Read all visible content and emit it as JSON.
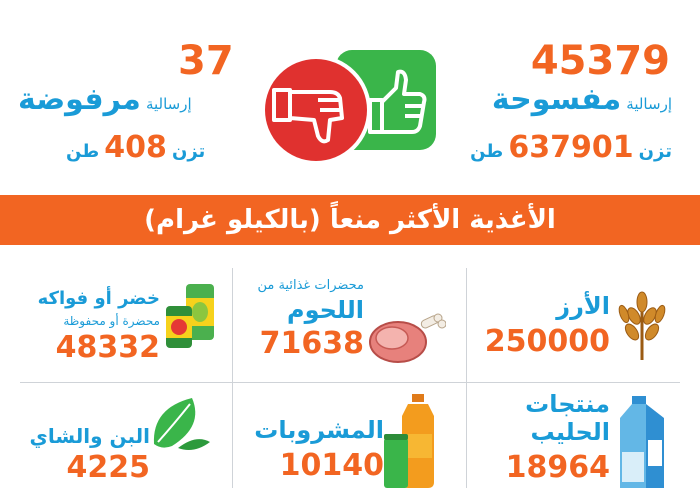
{
  "approved": {
    "count": "45379",
    "label_small": "إرسالية",
    "label_big": "مفسوحة",
    "weight_prefix": "تزن",
    "weight": "637901",
    "unit": "طن"
  },
  "rejected": {
    "count": "37",
    "label_small": "إرسالية",
    "label_big": "مرفوضة",
    "weight_prefix": "تزن",
    "weight": "408",
    "unit": "طن"
  },
  "banner": {
    "title": "الأغذية الأكثر منعاً (بالكيلو غرام)"
  },
  "items": {
    "rice": {
      "title": "الأرز",
      "value": "250000"
    },
    "meat": {
      "subtitle": "محضرات غذائية من",
      "title": "اللحوم",
      "value": "71638"
    },
    "veg": {
      "title": "خضر أو فواكه",
      "subtitle": "محضرة أو محفوظة",
      "value": "48332"
    },
    "dairy": {
      "title1": "منتجات",
      "title2": "الحليب",
      "value": "18964"
    },
    "drinks": {
      "title": "المشروبات",
      "value": "10140"
    },
    "coffee": {
      "title": "البن والشاي",
      "value": "4225"
    }
  },
  "colors": {
    "accent": "#f26522",
    "blue": "#1a9bd7",
    "green": "#3ab54a",
    "red": "#e0312f"
  }
}
